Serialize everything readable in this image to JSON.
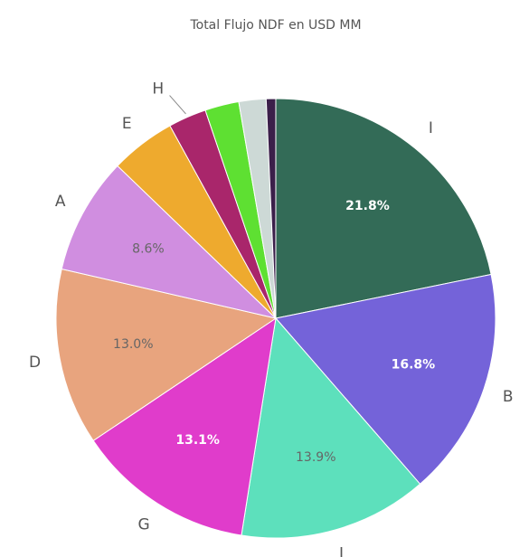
{
  "chart_data": {
    "type": "pie",
    "title": "Total Flujo NDF en USD MM",
    "categories": [
      "I",
      "B",
      "L",
      "G",
      "D",
      "A",
      "E",
      "H",
      null,
      null,
      null
    ],
    "values": [
      21.8,
      16.8,
      13.9,
      13.1,
      13.0,
      8.6,
      4.8,
      2.8,
      2.5,
      2.0,
      0.7
    ],
    "value_labels": [
      "21.8%",
      "16.8%",
      "13.9%",
      "13.1%",
      "13.0%",
      "8.6%",
      null,
      null,
      null,
      null,
      null
    ],
    "colors": [
      "#336b57",
      "#7463d9",
      "#5de0bc",
      "#e03ccb",
      "#e8a47e",
      "#d08ee0",
      "#eeaa2e",
      "#a9266b",
      "#5ee032",
      "#cdd9d6",
      "#3b1f4a"
    ]
  }
}
